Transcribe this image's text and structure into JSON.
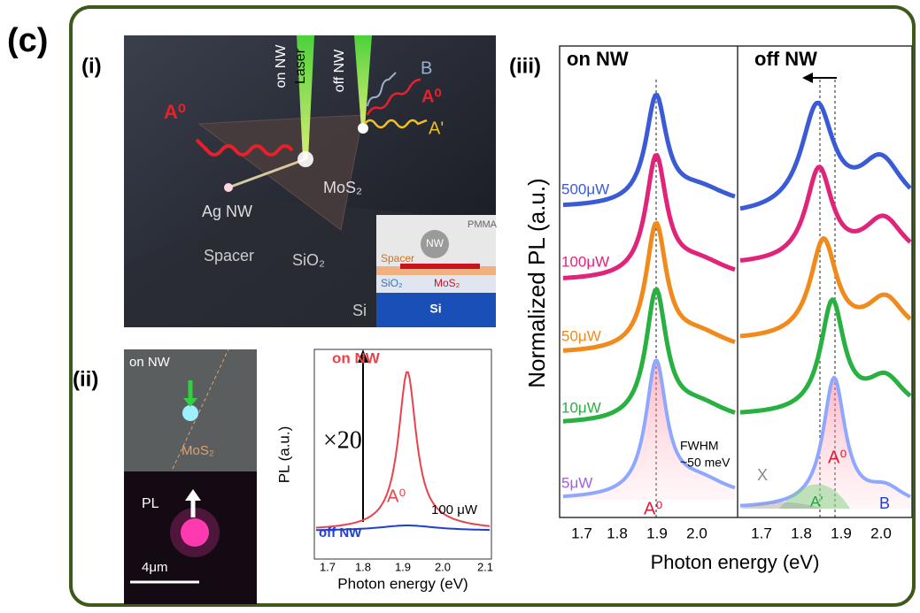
{
  "panel_label": "(c)",
  "panel_i": {
    "label": "(i)",
    "on_nw": "on NW",
    "laser": "Laser",
    "off_nw": "off NW",
    "b": "B",
    "a0_left": "A⁰",
    "a0_right": "A⁰",
    "a_prime": "A'",
    "mos2": "MoS₂",
    "ag_nw": "Ag NW",
    "spacer": "Spacer",
    "sio2": "SiO₂",
    "si": "Si",
    "inset": {
      "pmma": "PMMA",
      "nw": "NW",
      "spacer": "Spacer",
      "sio2": "SiO₂",
      "mos2": "MoS₂",
      "si": "Si"
    }
  },
  "panel_ii": {
    "label": "(ii)",
    "image_on_nw": "on NW",
    "image_mos2": "MoS₂",
    "image_pl": "PL",
    "scale_bar": "4μm",
    "plot": {
      "on_nw": "on NW",
      "factor": "×20",
      "a0": "A⁰",
      "off_nw": "off NW",
      "power": "100 μW",
      "y_label": "PL (a.u.)",
      "x_label": "Photon energy (eV)",
      "x_ticks": [
        "1.7",
        "1.8",
        "1.9",
        "2.0",
        "2.1"
      ]
    }
  },
  "panel_iii": {
    "label": "(iii)",
    "left_title": "on NW",
    "right_title": "off NW",
    "y_label": "Normalized PL (a.u.)",
    "x_label": "Photon energy (eV)",
    "powers": [
      "500μW",
      "100μW",
      "50μW",
      "10μW",
      "5μW"
    ],
    "fwhm": "FWHM",
    "fwhm_value": "~50 meV",
    "left_a0": "A⁰",
    "right_x": "X",
    "right_a_prime": "A'",
    "right_a0": "A⁰",
    "right_b": "B",
    "left_x_ticks": [
      "1.7",
      "1.8",
      "1.9",
      "2.0"
    ],
    "right_x_ticks": [
      "1.7",
      "1.8",
      "1.9",
      "2.0"
    ]
  }
}
